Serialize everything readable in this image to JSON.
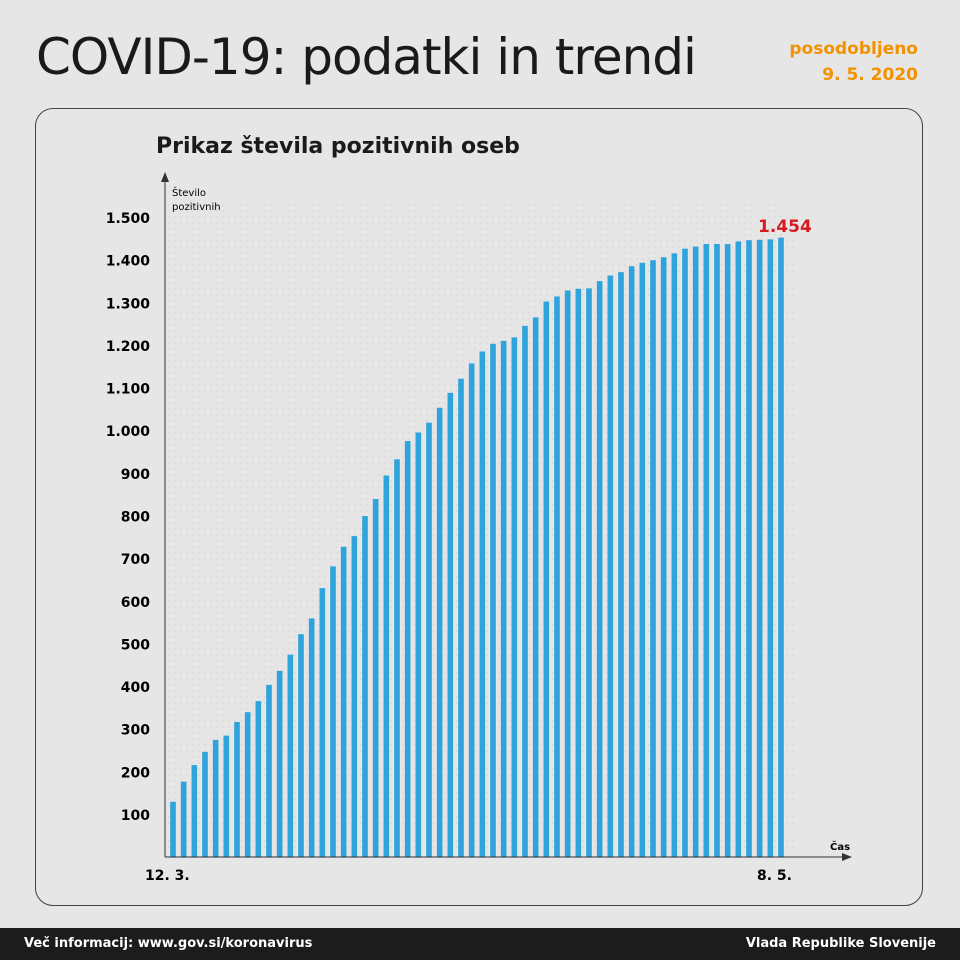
{
  "header": {
    "title": "COVID-19: podatki in trendi",
    "updated_label": "posodobljeno",
    "updated_date": "9. 5. 2020"
  },
  "footer": {
    "info": "Več informacij: www.gov.si/koronavirus",
    "org": "Vlada Republike Slovenije"
  },
  "colors": {
    "bar": "#2fa3dc",
    "accent": "#f39200",
    "highlight": "#d71920"
  },
  "chart_data": {
    "type": "bar",
    "title": "Prikaz števila pozitivnih oseb",
    "ylabel_line1": "Število",
    "ylabel_line2": "pozitivnih",
    "xlabel": "Čas",
    "first_label": "12. 3.",
    "last_label": "8. 5.",
    "ylim": [
      0,
      1500
    ],
    "yticks": [
      100,
      200,
      300,
      400,
      500,
      600,
      700,
      800,
      900,
      1000,
      1100,
      1200,
      1300,
      1400,
      1500
    ],
    "ytick_labels": [
      "100",
      "200",
      "300",
      "400",
      "500",
      "600",
      "700",
      "800",
      "900",
      "1.000",
      "1.100",
      "1.200",
      "1.300",
      "1.400",
      "1.500"
    ],
    "annotation": "1.454",
    "values": [
      131,
      178,
      217,
      248,
      276,
      286,
      318,
      341,
      367,
      405,
      438,
      476,
      524,
      561,
      632,
      683,
      729,
      754,
      801,
      841,
      896,
      934,
      977,
      997,
      1020,
      1055,
      1090,
      1123,
      1159,
      1187,
      1205,
      1212,
      1220,
      1247,
      1267,
      1304,
      1316,
      1330,
      1334,
      1335,
      1352,
      1365,
      1373,
      1387,
      1395,
      1401,
      1408,
      1417,
      1428,
      1433,
      1439,
      1439,
      1439,
      1445,
      1448,
      1449,
      1450,
      1454
    ]
  }
}
